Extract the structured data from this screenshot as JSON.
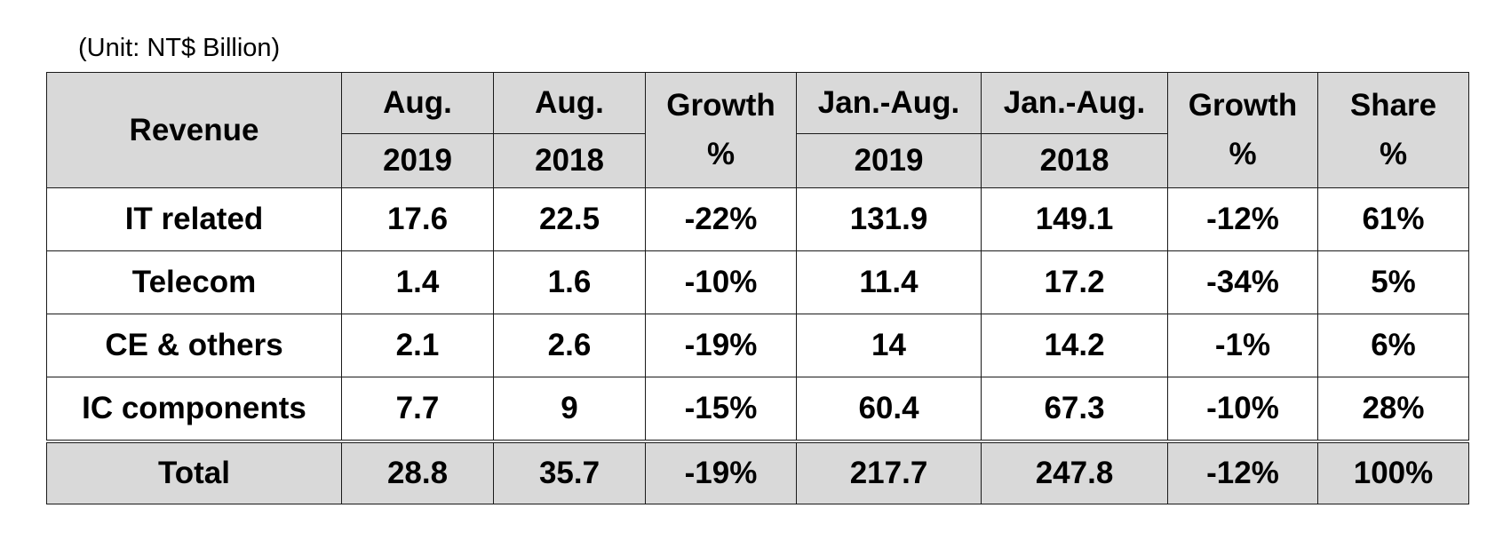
{
  "unit_note": "(Unit: NT$ Billion)",
  "header": {
    "revenue": "Revenue",
    "aug_2019_top": "Aug.",
    "aug_2019_bottom": "2019",
    "aug_2018_top": "Aug.",
    "aug_2018_bottom": "2018",
    "growth_month_top": "Growth",
    "growth_month_bottom": "%",
    "ytd_2019_top": "Jan.-Aug.",
    "ytd_2019_bottom": "2019",
    "ytd_2018_top": "Jan.-Aug.",
    "ytd_2018_bottom": "2018",
    "growth_ytd_top": "Growth",
    "growth_ytd_bottom": "%",
    "share_top": "Share",
    "share_bottom": "%"
  },
  "rows": [
    {
      "label": "IT related",
      "aug_2019": "17.6",
      "aug_2018": "22.5",
      "growth_month": "-22%",
      "ytd_2019": "131.9",
      "ytd_2018": "149.1",
      "growth_ytd": "-12%",
      "share": "61%"
    },
    {
      "label": "Telecom",
      "aug_2019": "1.4",
      "aug_2018": "1.6",
      "growth_month": "-10%",
      "ytd_2019": "11.4",
      "ytd_2018": "17.2",
      "growth_ytd": "-34%",
      "share": "5%"
    },
    {
      "label": "CE & others",
      "aug_2019": "2.1",
      "aug_2018": "2.6",
      "growth_month": "-19%",
      "ytd_2019": "14",
      "ytd_2018": "14.2",
      "growth_ytd": "-1%",
      "share": "6%"
    },
    {
      "label": "IC components",
      "aug_2019": "7.7",
      "aug_2018": "9",
      "growth_month": "-15%",
      "ytd_2019": "60.4",
      "ytd_2018": "67.3",
      "growth_ytd": "-10%",
      "share": "28%"
    }
  ],
  "total": {
    "label": "Total",
    "aug_2019": "28.8",
    "aug_2018": "35.7",
    "growth_month": "-19%",
    "ytd_2019": "217.7",
    "ytd_2018": "247.8",
    "growth_ytd": "-12%",
    "share": "100%"
  },
  "colors": {
    "header_fill": "#d9d9d9",
    "border": "#1a1a1a",
    "text": "#000000"
  }
}
